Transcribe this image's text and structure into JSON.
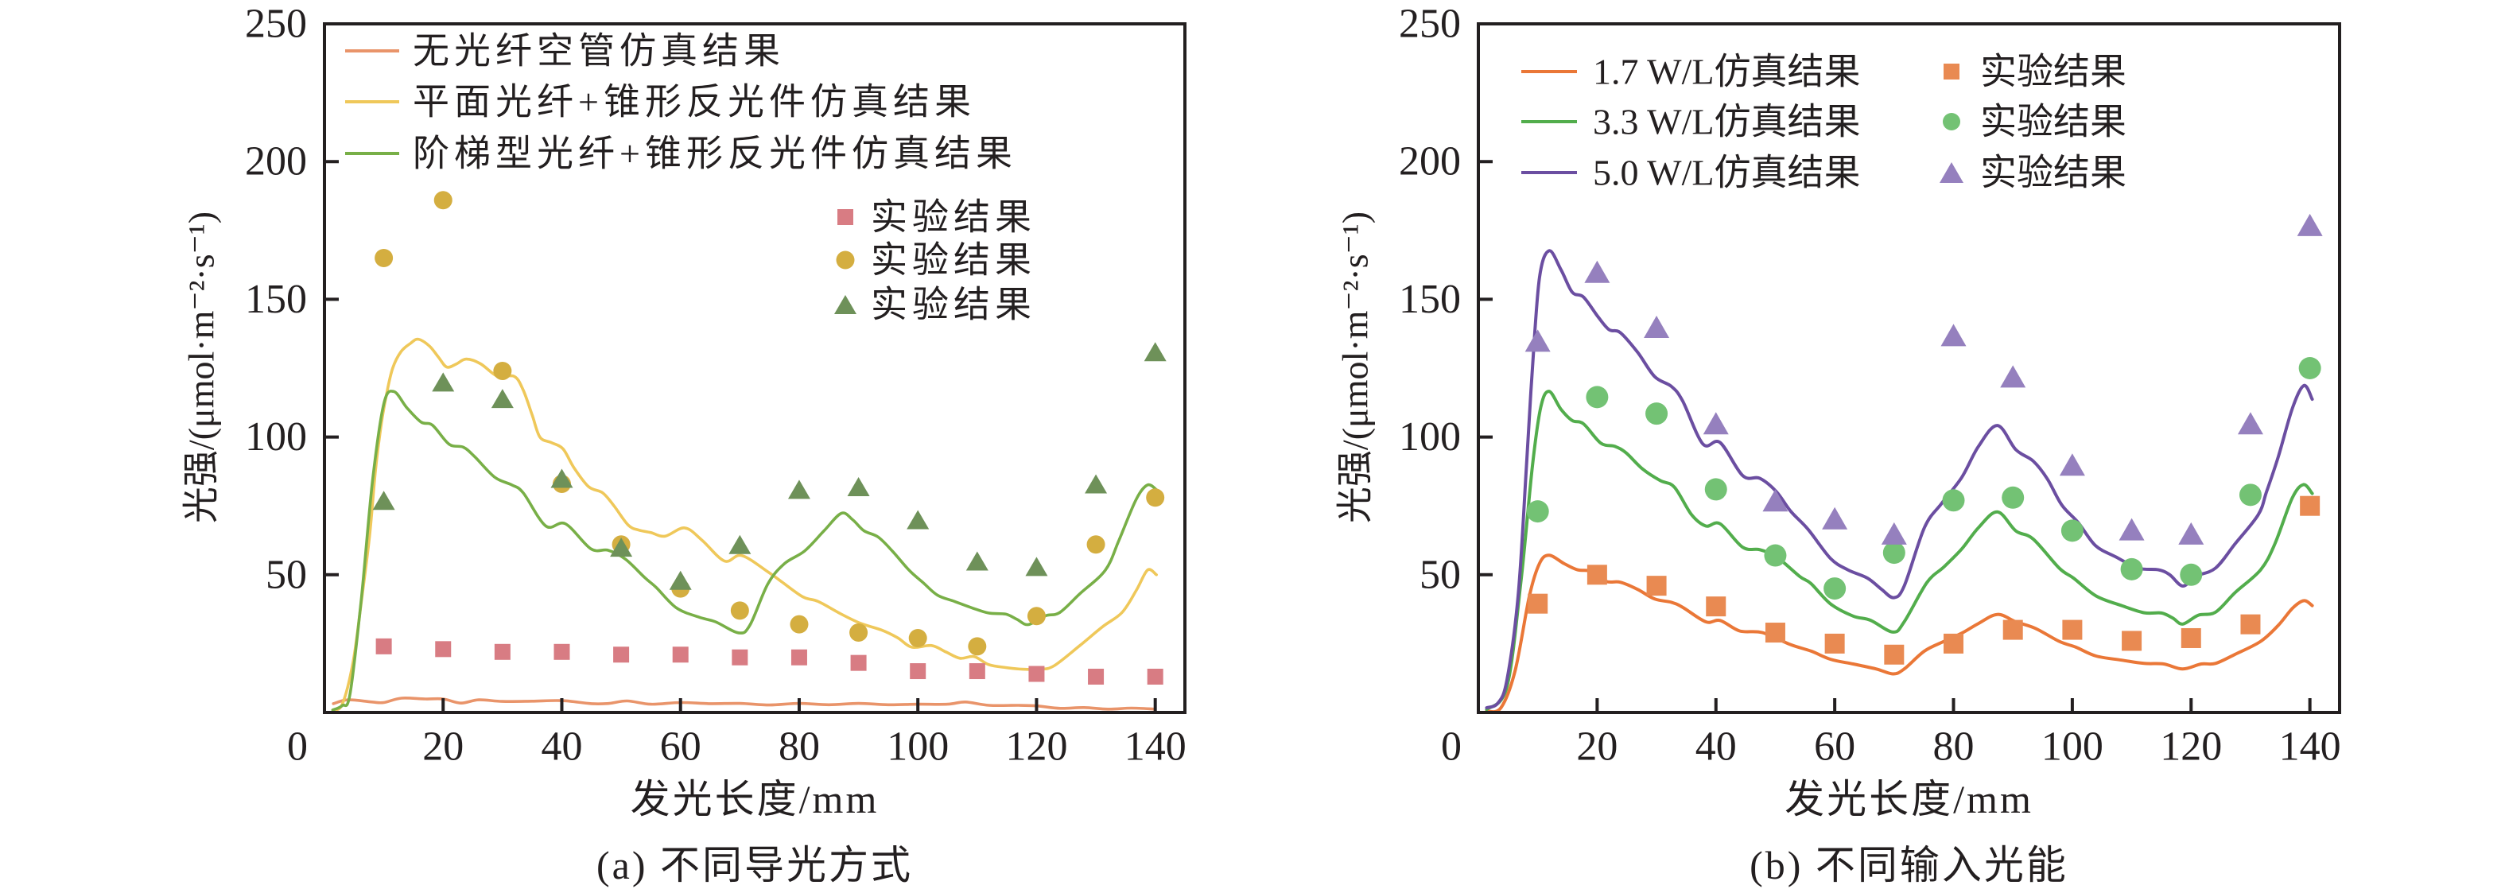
{
  "chart_data": [
    {
      "type": "line+scatter",
      "title": "(a) 不同导光方式",
      "xlabel": "发光长度/mm",
      "ylabel": "光强/(μmol·m⁻²·s⁻¹)",
      "xlim": [
        0,
        145
      ],
      "ylim": [
        0,
        250
      ],
      "xticks": [
        20,
        40,
        60,
        80,
        100,
        120,
        140
      ],
      "yticks": [
        50,
        100,
        150,
        200,
        250
      ],
      "origin_label": "0",
      "grid": false,
      "legend_position": "top-left",
      "lines": [
        {
          "name": "无光纤空管仿真结果",
          "color": "#E9946A",
          "x": [
            1.5,
            4,
            8,
            10,
            13,
            17,
            20,
            23,
            26,
            30,
            35,
            40,
            45,
            48,
            51,
            55,
            60,
            65,
            70,
            75,
            80,
            85,
            90,
            95,
            100,
            105,
            108,
            112,
            117,
            120,
            124,
            128,
            132,
            136,
            140
          ],
          "y": [
            3.2,
            4.6,
            3.8,
            3.6,
            5.2,
            4.9,
            4.9,
            3.4,
            4.6,
            4.0,
            4.1,
            4.3,
            3.2,
            3.3,
            4.2,
            3.0,
            3.6,
            3.2,
            3.3,
            2.7,
            3.3,
            2.8,
            3.3,
            2.8,
            3.0,
            3.0,
            3.8,
            2.6,
            2.6,
            2.4,
            1.5,
            1.8,
            1.2,
            1.6,
            1.2
          ]
        },
        {
          "name": "平面光纤+锥形反光件仿真结果",
          "color": "#EFC85A",
          "x": [
            1.4,
            3,
            4.8,
            6.2,
            7.6,
            8.6,
            9.6,
            10.5,
            11.5,
            12.9,
            14.5,
            15.8,
            17.7,
            19.2,
            20.6,
            22.2,
            23.9,
            26.3,
            29.2,
            32,
            33.5,
            35,
            36.3,
            38.2,
            40.2,
            42,
            44.5,
            46.9,
            48.8,
            51.2,
            53,
            55,
            57.4,
            60.7,
            63.6,
            67.4,
            70.3,
            74.7,
            76.9,
            80.6,
            83.2,
            87.1,
            90.4,
            93.8,
            96.6,
            99,
            102.3,
            104.7,
            107.1,
            109.5,
            111.9,
            114.8,
            117.6,
            120.5,
            122.9,
            127.3,
            131.1,
            134.4,
            136.8,
            138.7,
            140.2
          ],
          "y": [
            0.9,
            3,
            18,
            40,
            64,
            88,
            105,
            116,
            125,
            131,
            134,
            135.5,
            133,
            129,
            125.4,
            126.5,
            128.3,
            126.6,
            122,
            122,
            117,
            108,
            100,
            98,
            95.7,
            89,
            82,
            79.7,
            75,
            68,
            66.2,
            65.3,
            64,
            67,
            62.6,
            55,
            57,
            51.1,
            47.7,
            42,
            40.3,
            35.7,
            32.3,
            30,
            27.1,
            23.7,
            24.3,
            22,
            19.7,
            20.3,
            17.4,
            16.3,
            15.7,
            15.7,
            16.9,
            24.3,
            31.1,
            36.3,
            44.3,
            51.7,
            50
          ]
        },
        {
          "name": "阶梯型光纤+锥形反光件仿真结果",
          "color": "#78AF47",
          "x": [
            1.4,
            3,
            4.3,
            6.2,
            8.1,
            10,
            11.7,
            13.9,
            16.3,
            18.2,
            21,
            23.4,
            25.3,
            28.7,
            31.6,
            33.5,
            37.3,
            40.6,
            44.9,
            47.8,
            50.7,
            54,
            55.9,
            59.3,
            63.1,
            65.9,
            69.8,
            71.7,
            74.7,
            77.5,
            80.9,
            84.2,
            87.1,
            89,
            90.9,
            93.3,
            95.7,
            98.5,
            100.9,
            103.3,
            106.2,
            109.1,
            111.9,
            114.8,
            116.7,
            118.6,
            121.5,
            123.9,
            127.3,
            131.6,
            133.9,
            136.8,
            138.7,
            140.2
          ],
          "y": [
            0.9,
            2.5,
            6.6,
            41,
            84,
            112,
            116.5,
            110.6,
            105.4,
            104.3,
            97.4,
            96.3,
            92.9,
            85.4,
            82.6,
            79.7,
            67.7,
            68.5,
            59.4,
            58.9,
            55.7,
            48.9,
            45.4,
            38,
            34.6,
            32.9,
            28.9,
            31.7,
            46.6,
            54,
            58.6,
            66,
            72.3,
            70,
            66,
            63.7,
            58.6,
            51.7,
            47.1,
            42.6,
            40.3,
            38,
            36.1,
            35.7,
            33.8,
            31.9,
            35.1,
            36.3,
            43.1,
            51.7,
            62.6,
            77.4,
            82.6,
            80.9
          ]
        }
      ],
      "scatter": [
        {
          "name": "实验结果",
          "marker": "square",
          "color": "#D87C83",
          "x": [
            10,
            20,
            30,
            40,
            50,
            60,
            70,
            80,
            90,
            100,
            110,
            120,
            130,
            140
          ],
          "y": [
            24,
            23,
            22,
            22,
            21,
            21,
            20,
            20,
            18,
            15,
            15,
            14,
            13,
            13
          ]
        },
        {
          "name": "实验结果",
          "marker": "circle",
          "color": "#D4AE40",
          "x": [
            10,
            20,
            30,
            40,
            50,
            60,
            70,
            80,
            90,
            100,
            110,
            120,
            130,
            140
          ],
          "y": [
            165,
            186,
            124,
            83,
            61,
            45,
            37,
            32,
            29,
            27,
            24,
            35,
            61,
            78
          ]
        },
        {
          "name": "实验结果",
          "marker": "triangle",
          "color": "#6E9159",
          "x": [
            10,
            20,
            30,
            40,
            50,
            60,
            70,
            80,
            90,
            100,
            110,
            120,
            130,
            140
          ],
          "y": [
            77,
            120,
            114,
            85,
            60,
            48,
            61,
            81,
            82,
            70,
            55,
            53,
            83,
            131
          ]
        }
      ]
    },
    {
      "type": "line+scatter",
      "title": "(b) 不同输入光能",
      "xlabel": "发光长度/mm",
      "ylabel": "光强/(μmol·m⁻²·s⁻¹)",
      "xlim": [
        0,
        145
      ],
      "ylim": [
        0,
        250
      ],
      "xticks": [
        20,
        40,
        60,
        80,
        100,
        120,
        140
      ],
      "yticks": [
        50,
        100,
        150,
        200,
        250
      ],
      "origin_label": "0",
      "grid": false,
      "legend_position": "top-left",
      "lines": [
        {
          "name": "1.7 W/L仿真结果",
          "color": "#EA7737",
          "x": [
            1.4,
            3.8,
            6.2,
            8.6,
            10.3,
            11.9,
            14.4,
            16.7,
            19.1,
            21.5,
            23.9,
            26.8,
            29.7,
            32.5,
            34.4,
            38.3,
            40.7,
            44,
            47.8,
            52.6,
            56,
            59.3,
            63.1,
            67,
            69.8,
            71.7,
            75.1,
            78.4,
            81.4,
            84.2,
            87.4,
            90.5,
            93.8,
            97.8,
            100.6,
            104,
            108.3,
            112.1,
            115.4,
            118.6,
            121.7,
            124.1,
            127.4,
            131.7,
            134.7,
            137.1,
            139,
            140.4
          ],
          "y": [
            0.5,
            1.7,
            15.2,
            42.3,
            54.1,
            57.1,
            54.1,
            51.8,
            51.2,
            47.6,
            47.3,
            44.7,
            41.2,
            40,
            38.2,
            32.9,
            33.4,
            29.6,
            29,
            24.6,
            22.3,
            19.3,
            17.6,
            15.8,
            14,
            15.8,
            22.3,
            25.8,
            28.8,
            32.3,
            35.6,
            32.9,
            30.5,
            25.8,
            23.7,
            20.5,
            19,
            17.8,
            17.6,
            15.8,
            17.6,
            17.8,
            21.1,
            25.8,
            31.7,
            37.9,
            40.6,
            38.8
          ]
        },
        {
          "name": "3.3 W/L仿真结果",
          "color": "#52AD4C",
          "x": [
            1.4,
            4.8,
            7.2,
            9.1,
            10.5,
            11.9,
            13.9,
            15.8,
            17.7,
            20.6,
            23,
            24.9,
            27.7,
            30.6,
            33,
            35.9,
            38.3,
            40.7,
            44.5,
            47.4,
            50.2,
            54.1,
            56,
            59.3,
            63.1,
            66,
            69.8,
            71.7,
            75.5,
            78.4,
            81.4,
            84.2,
            87.4,
            90.5,
            93.4,
            97.8,
            100.2,
            104,
            108.3,
            112.1,
            115,
            116.9,
            118.6,
            121.2,
            124.1,
            127.4,
            131.7,
            134.1,
            137,
            138.9,
            140.4
          ],
          "y": [
            1.1,
            9.3,
            48.2,
            89.5,
            110.7,
            116.6,
            110.1,
            106,
            104.8,
            97.8,
            96.6,
            94.2,
            88.3,
            84.2,
            81.8,
            71.8,
            67.7,
            68.5,
            60,
            59.1,
            56.5,
            49.4,
            46.8,
            39.4,
            35,
            33.5,
            29.2,
            32.9,
            47.1,
            52.9,
            59.4,
            67.1,
            72.8,
            65.9,
            63,
            52.4,
            48.8,
            42.3,
            38.8,
            36.2,
            36.1,
            34.3,
            32.1,
            35.3,
            36.4,
            43.5,
            51.8,
            61.2,
            77.7,
            82.7,
            79.5
          ]
        },
        {
          "name": "5.0 W/L仿真结果",
          "color": "#6B4EA1",
          "x": [
            1.4,
            3.3,
            4.8,
            6.7,
            8.1,
            9.1,
            10.3,
            11.9,
            13.9,
            15.8,
            17.7,
            20.1,
            22,
            23.9,
            26.8,
            29.7,
            32.5,
            34.4,
            37.8,
            40.7,
            44.5,
            47.4,
            50.2,
            52.6,
            55.5,
            59.3,
            62.2,
            65.5,
            67.9,
            69.9,
            71.7,
            75.1,
            78,
            81.4,
            84.2,
            87.4,
            90.5,
            93.4,
            95.8,
            98.2,
            101,
            103.9,
            107.3,
            111.1,
            114.5,
            116.4,
            118.6,
            120.7,
            124.1,
            127.4,
            131.3,
            132.7,
            134.7,
            137.1,
            139,
            140.4
          ],
          "y": [
            1.7,
            3.4,
            11.7,
            42.3,
            89.5,
            124.9,
            157.9,
            167.6,
            160.8,
            152.6,
            150.8,
            143.8,
            139,
            137.9,
            130.8,
            121.9,
            118.4,
            113.1,
            97.5,
            98,
            86,
            85,
            80.1,
            73,
            66.5,
            55.9,
            51.8,
            48.8,
            44.7,
            41.7,
            45.9,
            67.1,
            75.9,
            85.4,
            96.6,
            104.2,
            95.4,
            91.3,
            84.8,
            75.4,
            68.9,
            60.6,
            56.5,
            52.4,
            51.8,
            50,
            45.9,
            49.4,
            52.4,
            61.2,
            71.8,
            80.1,
            93,
            110.7,
            118.7,
            113.7
          ]
        }
      ],
      "scatter": [
        {
          "name": "实验结果",
          "marker": "square",
          "color": "#E98A52",
          "x": [
            10,
            20,
            30,
            40,
            50,
            60,
            70,
            80,
            90,
            100,
            110,
            120,
            130,
            140
          ],
          "y": [
            39.5,
            50,
            46,
            38.5,
            29,
            25,
            21,
            25,
            30,
            30,
            26,
            27,
            32,
            75
          ]
        },
        {
          "name": "实验结果",
          "marker": "circle",
          "color": "#73C274",
          "x": [
            10,
            20,
            30,
            40,
            50,
            60,
            70,
            80,
            90,
            100,
            110,
            120,
            130,
            140
          ],
          "y": [
            73,
            114.5,
            108.5,
            81,
            57,
            45,
            58,
            77,
            78,
            66,
            52,
            50,
            79,
            125
          ]
        },
        {
          "name": "实验结果",
          "marker": "triangle",
          "color": "#9580BE",
          "x": [
            10,
            20,
            30,
            40,
            50,
            60,
            70,
            80,
            90,
            100,
            110,
            120,
            130,
            140
          ],
          "y": [
            135,
            160,
            140,
            105,
            77,
            70.5,
            65,
            137,
            122,
            90,
            66.5,
            65,
            105,
            177
          ]
        }
      ]
    }
  ]
}
